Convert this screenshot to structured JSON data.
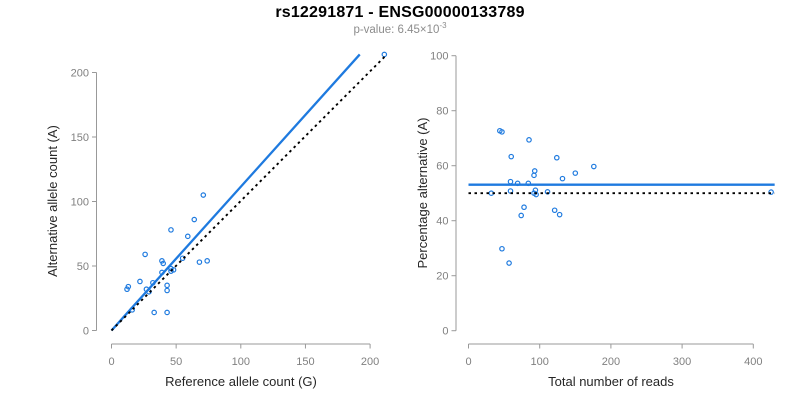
{
  "header": {
    "title": "rs12291871 - ENSG00000133789",
    "pvalue_prefix": "p-value: 6.45×10",
    "pvalue_exponent": "-3"
  },
  "colors": {
    "accent_blue": "#1E7ADF",
    "reference_line_black": "#000000",
    "axis_gray": "#999999",
    "tick_label_gray": "#808080",
    "axis_title_dark": "#262626",
    "subtitle_gray": "#8c8c8c"
  },
  "chart_data": [
    {
      "type": "scatter",
      "name": "allele-counts-panel",
      "title": "",
      "xlabel": "Reference allele count (G)",
      "ylabel": "Alternative allele count (A)",
      "xlim": [
        0,
        213
      ],
      "ylim": [
        0,
        215
      ],
      "x_ticks": [
        0,
        50,
        100,
        150,
        200
      ],
      "y_ticks": [
        0,
        50,
        100,
        150,
        200
      ],
      "grid": false,
      "legend": "none",
      "points": [
        [
          12,
          32
        ],
        [
          13,
          34
        ],
        [
          16,
          16
        ],
        [
          22,
          38
        ],
        [
          26,
          59
        ],
        [
          27,
          32
        ],
        [
          29,
          30
        ],
        [
          32,
          37
        ],
        [
          33,
          14
        ],
        [
          39,
          45
        ],
        [
          39,
          54
        ],
        [
          40,
          52
        ],
        [
          43,
          35
        ],
        [
          43,
          31
        ],
        [
          43,
          14
        ],
        [
          46,
          46
        ],
        [
          46,
          48
        ],
        [
          46,
          78
        ],
        [
          48,
          47
        ],
        [
          55,
          56
        ],
        [
          59,
          73
        ],
        [
          64,
          86
        ],
        [
          68,
          53
        ],
        [
          71,
          105
        ],
        [
          74,
          54
        ],
        [
          211,
          214
        ]
      ],
      "lines": [
        {
          "name": "fit-line",
          "x1": 0,
          "y1": 0,
          "x2": 192,
          "y2": 214,
          "style": "solid",
          "color_key": "accent_blue"
        },
        {
          "name": "identity-line",
          "x1": 0,
          "y1": 0,
          "x2": 212,
          "y2": 213,
          "style": "dotted",
          "color_key": "reference_line_black"
        }
      ]
    },
    {
      "type": "scatter",
      "name": "percentage-panel",
      "title": "",
      "xlabel": "Total number of reads",
      "ylabel": "Percentage alternative (A)",
      "xlim": [
        0,
        430
      ],
      "ylim": [
        0,
        100
      ],
      "x_ticks": [
        0,
        100,
        200,
        300,
        400
      ],
      "y_ticks": [
        0,
        20,
        40,
        60,
        80,
        100
      ],
      "grid": false,
      "legend": "none",
      "points": [
        [
          44,
          72.7
        ],
        [
          47,
          72.3
        ],
        [
          32,
          50.0
        ],
        [
          60,
          63.3
        ],
        [
          85,
          69.4
        ],
        [
          59,
          54.2
        ],
        [
          59,
          50.8
        ],
        [
          69,
          53.6
        ],
        [
          47,
          29.8
        ],
        [
          84,
          53.6
        ],
        [
          93,
          58.1
        ],
        [
          92,
          56.5
        ],
        [
          78,
          44.9
        ],
        [
          74,
          41.9
        ],
        [
          57,
          24.6
        ],
        [
          92,
          50.0
        ],
        [
          94,
          51.1
        ],
        [
          124,
          62.9
        ],
        [
          95,
          49.5
        ],
        [
          111,
          50.5
        ],
        [
          132,
          55.3
        ],
        [
          150,
          57.3
        ],
        [
          121,
          43.8
        ],
        [
          176,
          59.7
        ],
        [
          128,
          42.2
        ],
        [
          425,
          50.4
        ]
      ],
      "lines": [
        {
          "name": "fit-line",
          "x1": 0,
          "y1": 53.1,
          "x2": 430,
          "y2": 53.1,
          "style": "solid",
          "color_key": "accent_blue"
        },
        {
          "name": "reference-line",
          "x1": 0,
          "y1": 50,
          "x2": 430,
          "y2": 50,
          "style": "dotted",
          "color_key": "reference_line_black"
        }
      ]
    }
  ]
}
